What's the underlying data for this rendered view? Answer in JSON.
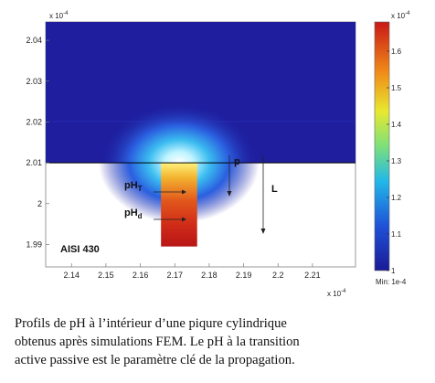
{
  "figure": {
    "x_exponent_label": "x 10",
    "x_exponent_power": "-4",
    "y_exponent_label": "x 10",
    "y_exponent_power": "-4",
    "colorbar_exponent_label": "x 10",
    "colorbar_exponent_power": "-4",
    "colorbar_min_label": "Min: 1e-4",
    "material_label": "AISI 430",
    "label_pH_T_main": "pH",
    "label_pH_T_sub": "T",
    "label_pH_d_main": "pH",
    "label_pH_d_sub": "d",
    "label_p": "p",
    "label_L": "L",
    "colors": {
      "background": "#ffffff",
      "cold": "#1e1e9e",
      "hot": "#d02020"
    }
  },
  "chart_data": {
    "type": "heatmap",
    "x_ticks": [
      "2.14",
      "2.15",
      "2.16",
      "2.17",
      "2.18",
      "2.19",
      "2.2",
      "2.21"
    ],
    "x_tick_values": [
      2.14,
      2.15,
      2.16,
      2.17,
      2.18,
      2.19,
      2.2,
      2.21
    ],
    "y_ticks": [
      "2.04",
      "2.03",
      "2.02",
      "2.01",
      "2",
      "1.99"
    ],
    "y_tick_values": [
      2.04,
      2.03,
      2.02,
      2.01,
      2.0,
      1.99
    ],
    "xlim": [
      2.1325,
      2.2225
    ],
    "ylim": [
      1.9845,
      2.0445
    ],
    "pit": {
      "x0": 2.166,
      "x1": 2.1765,
      "y_top": 2.01,
      "y_bottom": 1.9895
    },
    "colorbar": {
      "ticks": [
        "1.6",
        "1.5",
        "1.4",
        "1.3",
        "1.2",
        "1.1",
        "1"
      ],
      "tick_values": [
        1.6,
        1.5,
        1.4,
        1.3,
        1.2,
        1.1,
        1.0
      ],
      "range": [
        1.0,
        1.68
      ]
    }
  },
  "caption": {
    "line1": "Profils de pH à l’intérieur d’une piqure cylindrique",
    "line2": "obtenus après simulations FEM. Le pH à la transition",
    "line3": "active passive est le paramètre clé de la propagation."
  }
}
